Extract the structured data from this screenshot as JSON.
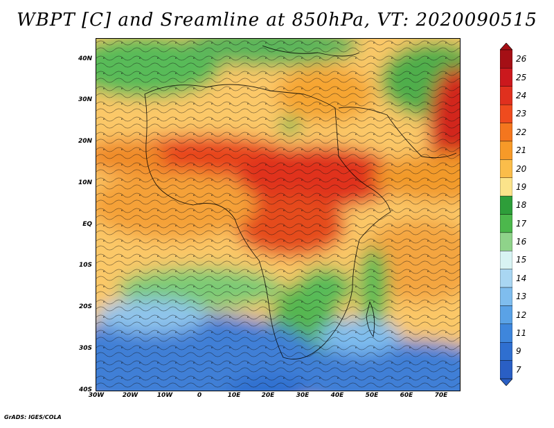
{
  "title": "WBPT [C] and Sreamline at 850hPa, VT: 2020090515",
  "credit": "GrADS: IGES/COLA",
  "map": {
    "lat_ticks": [
      "40N",
      "30N",
      "20N",
      "10N",
      "EQ",
      "10S",
      "20S",
      "30S",
      "40S"
    ],
    "lon_ticks": [
      "30W",
      "20W",
      "10W",
      "0",
      "10E",
      "20E",
      "30E",
      "40E",
      "50E",
      "60E",
      "70E"
    ],
    "lon_range": [
      -30,
      75
    ],
    "lat_range": [
      -40,
      45
    ],
    "variable": "wet-bulb potential temperature",
    "overlay": "streamlines"
  },
  "colorbar": {
    "labels": [
      "26",
      "25",
      "24",
      "23",
      "22",
      "21",
      "20",
      "19",
      "18",
      "17",
      "16",
      "15",
      "14",
      "13",
      "12",
      "11",
      "9",
      "7"
    ],
    "colors": [
      "#a50f15",
      "#cb181d",
      "#e0301e",
      "#ef4b1e",
      "#f4761e",
      "#f79a28",
      "#fbbd4a",
      "#fbe38a",
      "#2e9e3a",
      "#4cb84c",
      "#8fd38a",
      "#d8f3f3",
      "#a9d6f2",
      "#7fbdee",
      "#5aa2e6",
      "#3e86dc",
      "#2f6fd0",
      "#2a5fc4"
    ],
    "arrows": "both"
  }
}
